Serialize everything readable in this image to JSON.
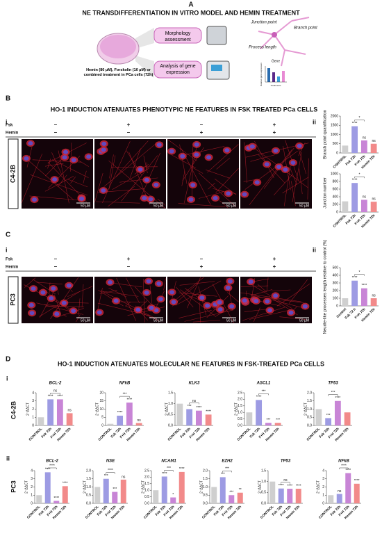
{
  "figure": {
    "A": {
      "letter": "A",
      "title": "NE TRANSDIFFERENTIATION IN VITRO MODEL AND HEMIN TREATMENT",
      "treatment": "Hemin (80 µM), Forskolin (10 µM) or combined treatment in PCa cells (72h)",
      "box1": "Morphology assessment",
      "box2": "Analysis of gene expression",
      "junction": "Junction point",
      "branch": "Branch point",
      "process": "Process length",
      "gene": "Gene",
      "gene_ylabel": "Relative gene expression",
      "gene_xlabel": "Treatments"
    },
    "B": {
      "letter": "B",
      "title": "HO-1 INDUCTION ATENUATES PHENOTYPIC NE FEATURES IN FSK TREATED PCa CELLS",
      "sub_i": "i",
      "sub_ii": "ii",
      "cell_line": "C4-2B",
      "rows": [
        {
          "label": "Fsk",
          "signs": [
            "–",
            "+",
            "–",
            "+"
          ]
        },
        {
          "label": "Hemin",
          "signs": [
            "–",
            "–",
            "+",
            "+"
          ]
        }
      ],
      "scale_bar": "50 µM"
    },
    "C": {
      "letter": "C",
      "title": null,
      "sub_i": "i",
      "sub_ii": "ii",
      "cell_line": "PC3",
      "rows": [
        {
          "label": "Fsk",
          "signs": [
            "–",
            "+",
            "–",
            "+"
          ]
        },
        {
          "label": "Hemin",
          "signs": [
            "–",
            "–",
            "+",
            "+"
          ]
        }
      ],
      "scale_bar": "50 µM"
    },
    "D": {
      "letter": "D",
      "title": "HO-1 INDUCTION ATENUATES MOLECULAR NE FEATURES IN FSK-TREATED PCa CELLS",
      "rows": [
        {
          "sub": "i",
          "cell_line": "C4-2B"
        },
        {
          "sub": "ii",
          "cell_line": "PC3"
        }
      ]
    }
  },
  "chart_data": [
    {
      "type": "bar",
      "ylabel": "Branch point quantification",
      "categories": [
        "CONTROL",
        "Fsk 72h",
        "F+H 72h",
        "Hemin 72h"
      ],
      "values": [
        400,
        1450,
        680,
        500
      ],
      "colors": [
        "#cfcfcf",
        "#9d9be3",
        "#c885d6",
        "#f28a8a"
      ],
      "ylim": [
        0,
        2000
      ],
      "yticks": [
        0,
        500,
        1000,
        1500,
        2000
      ],
      "sig": [
        null,
        "****",
        "ns",
        "ns"
      ],
      "bracket": "*"
    },
    {
      "type": "bar",
      "ylabel": "Junction number",
      "categories": [
        "CONTROL",
        "Fsk 72h",
        "F+H 72h",
        "Hemin 72h"
      ],
      "values": [
        280,
        760,
        320,
        270
      ],
      "colors": [
        "#cfcfcf",
        "#9d9be3",
        "#c885d6",
        "#f28a8a"
      ],
      "ylim": [
        0,
        1000
      ],
      "yticks": [
        0,
        200,
        400,
        600,
        800,
        1000
      ],
      "sig": [
        null,
        "****",
        "ns",
        "ns"
      ],
      "bracket": "*"
    },
    {
      "type": "bar",
      "ylabel": "Neurite-like processes length relative to control (%)",
      "categories": [
        "Control",
        "Fsk 72 h",
        "F+H 72h",
        "Hemin 72h"
      ],
      "values": [
        100,
        330,
        230,
        100
      ],
      "colors": [
        "#cfcfcf",
        "#9d9be3",
        "#c885d6",
        "#f28a8a"
      ],
      "ylim": [
        0,
        500
      ],
      "yticks": [
        0,
        100,
        200,
        300,
        400,
        500
      ],
      "sig": [
        null,
        "****",
        "****",
        "ns"
      ],
      "bracket": "*"
    },
    {
      "type": "bar",
      "title": "BCL-2",
      "ylabel": "2⁻ΔΔCT",
      "categories": [
        "CONTROL",
        "Fsk 72h",
        "F+H 72h",
        "Hemin 72h"
      ],
      "values": [
        1.0,
        3.2,
        3.2,
        1.5
      ],
      "colors": [
        "#cfcfcf",
        "#9d9be3",
        "#c885d6",
        "#f28a8a"
      ],
      "ylim": [
        0,
        4
      ],
      "yticks": [
        0,
        1,
        2,
        3,
        4
      ],
      "sig": [
        null,
        "****",
        "****",
        "ns"
      ],
      "bracket": "ns"
    },
    {
      "type": "bar",
      "title": "NFkB",
      "ylabel": "2⁻ΔΔCT",
      "categories": [
        "CONTROL",
        "Fsk 72h",
        "F+H 72h",
        "Hemin 72h"
      ],
      "values": [
        1,
        6,
        14,
        1.5
      ],
      "colors": [
        "#cfcfcf",
        "#9d9be3",
        "#c885d6",
        "#f28a8a"
      ],
      "ylim": [
        0,
        20
      ],
      "yticks": [
        0,
        5,
        10,
        15,
        20
      ],
      "sig": [
        null,
        "****",
        "****",
        "ns"
      ],
      "bracket": "***"
    },
    {
      "type": "bar",
      "title": "KLK3",
      "ylabel": "2⁻ΔΔCT",
      "categories": [
        "CONTROL",
        "Fsk 72h",
        "F+H 72h",
        "Hemin 72h"
      ],
      "values": [
        1.0,
        0.75,
        0.68,
        0.5
      ],
      "colors": [
        "#cfcfcf",
        "#9d9be3",
        "#c885d6",
        "#f28a8a"
      ],
      "ylim": [
        0,
        1.5
      ],
      "yticks": [
        {
          "value": 0,
          "label": "0.0"
        },
        0.5,
        {
          "value": 1,
          "label": "1.0"
        },
        1.5
      ],
      "sig": [
        null,
        "***",
        "****",
        "****"
      ],
      "bracket": "ns"
    },
    {
      "type": "bar",
      "title": "ASCL1",
      "ylabel": "2⁻ΔΔCT",
      "categories": [
        "CONTROL",
        "Fsk 72h",
        "F+H 72h",
        "Hemin 72h"
      ],
      "values": [
        1.0,
        1.95,
        0.2,
        0.2
      ],
      "colors": [
        "#cfcfcf",
        "#9d9be3",
        "#c885d6",
        "#f28a8a"
      ],
      "ylim": [
        0,
        2.5
      ],
      "yticks": [
        {
          "value": 0,
          "label": "0.0"
        },
        0.5,
        {
          "value": 1,
          "label": "1.0"
        },
        1.5,
        {
          "value": 2,
          "label": "2.0"
        },
        2.5
      ],
      "sig": [
        null,
        "****",
        "***",
        "***"
      ],
      "bracket": "***"
    },
    {
      "type": "bar",
      "title": "TP53",
      "ylabel": "2⁻ΔΔCT",
      "categories": [
        "CONTROL",
        "Fsk 72h",
        "F+H 72h",
        "Hemin 72h"
      ],
      "values": [
        1.0,
        0.45,
        1.5,
        0.8
      ],
      "colors": [
        "#cfcfcf",
        "#9d9be3",
        "#c885d6",
        "#f28a8a"
      ],
      "ylim": [
        0,
        2
      ],
      "yticks": [
        {
          "value": 0,
          "label": "0.0"
        },
        0.5,
        {
          "value": 1,
          "label": "1.0"
        },
        1.5,
        {
          "value": 2,
          "label": "2.0"
        }
      ],
      "sig": [
        null,
        "***",
        "****",
        null
      ],
      "bracket": "***"
    },
    {
      "type": "bar",
      "title": "BCL-2",
      "ylabel": "2⁻ΔΔCT",
      "categories": [
        "CONTROL",
        "Fsk 72h",
        "F+H 72h",
        "Hemin 72h"
      ],
      "values": [
        1.0,
        3.8,
        0.3,
        2.1
      ],
      "colors": [
        "#cfcfcf",
        "#9d9be3",
        "#c885d6",
        "#f28a8a"
      ],
      "ylim": [
        0,
        4
      ],
      "yticks": [
        0,
        1,
        2,
        3,
        4
      ],
      "sig": [
        null,
        "****",
        "****",
        "****"
      ],
      "bracket": "****"
    },
    {
      "type": "bar",
      "title": "NSE",
      "ylabel": "2⁻ΔΔCT",
      "categories": [
        "CONTROL",
        "Fsk 72h",
        "F+H 72h",
        "Hemin 72h"
      ],
      "values": [
        1.0,
        1.5,
        0.7,
        1.45
      ],
      "colors": [
        "#cfcfcf",
        "#9d9be3",
        "#c885d6",
        "#f28a8a"
      ],
      "ylim": [
        0,
        2
      ],
      "yticks": [
        {
          "value": 0,
          "label": "0.0"
        },
        0.5,
        {
          "value": 1,
          "label": "1.0"
        },
        1.5,
        {
          "value": 2,
          "label": "2.0"
        }
      ],
      "sig": [
        null,
        "***",
        "***",
        "ns"
      ],
      "bracket": "****"
    },
    {
      "type": "bar",
      "title": "NCAM1",
      "ylabel": "2⁻ΔΔCT",
      "categories": [
        "CONTROL",
        "Fsk 72h",
        "F+H 72h",
        "Hemin 72h"
      ],
      "values": [
        1.0,
        2.05,
        0.45,
        2.4
      ],
      "colors": [
        "#cfcfcf",
        "#9d9be3",
        "#c885d6",
        "#f28a8a"
      ],
      "ylim": [
        0,
        2.5
      ],
      "yticks": [
        {
          "value": 0,
          "label": "0.0"
        },
        0.5,
        {
          "value": 1,
          "label": "1.0"
        },
        1.5,
        {
          "value": 2,
          "label": "2.0"
        },
        2.5
      ],
      "sig": [
        null,
        "****",
        "*",
        "****"
      ],
      "bracket": "***"
    },
    {
      "type": "bar",
      "title": "EZH2",
      "ylabel": "2⁻ΔΔCT",
      "categories": [
        "CONTROL",
        "Fsk 72h",
        "F+H 72h",
        "Hemin 72h"
      ],
      "values": [
        1.0,
        1.6,
        0.5,
        0.65
      ],
      "colors": [
        "#cfcfcf",
        "#9d9be3",
        "#c885d6",
        "#f28a8a"
      ],
      "ylim": [
        0,
        2
      ],
      "yticks": [
        {
          "value": 0,
          "label": "0.0"
        },
        0.5,
        {
          "value": 1,
          "label": "1.0"
        },
        1.5,
        {
          "value": 2,
          "label": "2.0"
        }
      ],
      "sig": [
        null,
        "***",
        "***",
        "**"
      ],
      "bracket": "***"
    },
    {
      "type": "bar",
      "title": "TP53",
      "ylabel": "2⁻ΔΔCT",
      "categories": [
        "CONTROL",
        "Fsk 72h",
        "F+H 72h",
        "Hemin 72h"
      ],
      "values": [
        1.0,
        0.68,
        0.67,
        0.67
      ],
      "colors": [
        "#cfcfcf",
        "#9d9be3",
        "#c885d6",
        "#f28a8a"
      ],
      "ylim": [
        0,
        1.5
      ],
      "yticks": [
        {
          "value": 0,
          "label": "0.0"
        },
        0.5,
        {
          "value": 1,
          "label": "1.0"
        },
        1.5
      ],
      "sig": [
        null,
        "****",
        "****",
        "****"
      ],
      "bracket": "ns"
    },
    {
      "type": "bar",
      "title": "NFkB",
      "ylabel": "2⁻ΔΔCT",
      "categories": [
        "CONTROL",
        "Fsk 72h",
        "F+H 72h",
        "Hemin 72h"
      ],
      "values": [
        1.0,
        1.15,
        3.7,
        2.4
      ],
      "colors": [
        "#cfcfcf",
        "#9d9be3",
        "#c885d6",
        "#f28a8a"
      ],
      "ylim": [
        0,
        4
      ],
      "yticks": [
        0,
        1,
        2,
        3,
        4
      ],
      "sig": [
        null,
        "ns",
        "****",
        "****"
      ],
      "bracket": "****"
    }
  ]
}
